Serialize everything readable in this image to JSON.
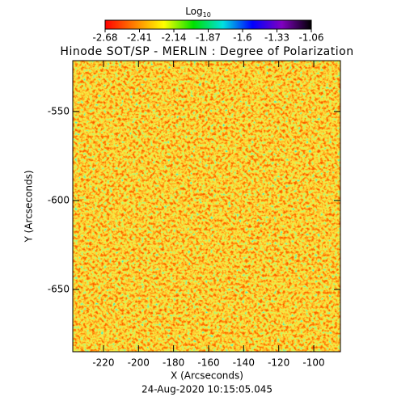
{
  "chart_data": {
    "type": "heatmap",
    "title": "Hinode SOT/SP - MERLIN : Degree of Polarization",
    "x_label": "X (Arcseconds)",
    "y_label": "Y (Arcseconds)",
    "annotation": "24-Aug-2020 10:15:05.045",
    "colorbar_label": "Log",
    "colorbar_label_sub": "10",
    "colorscale": [
      "#ff0000",
      "#ff8000",
      "#ffff00",
      "#00e000",
      "#00e0e0",
      "#0000ff",
      "#8000c0",
      "#000000"
    ],
    "clim": [
      -2.68,
      -1.06
    ],
    "cticks": [
      -2.68,
      -2.41,
      -2.14,
      -1.87,
      -1.6,
      -1.33,
      -1.06
    ],
    "xlim": [
      -237.5,
      -84.8
    ],
    "xticks": [
      -220,
      -200,
      -180,
      -160,
      -140,
      -120,
      -100
    ],
    "ylim": [
      -685,
      -521.4
    ],
    "yticks": [
      -550,
      -600,
      -650
    ]
  }
}
